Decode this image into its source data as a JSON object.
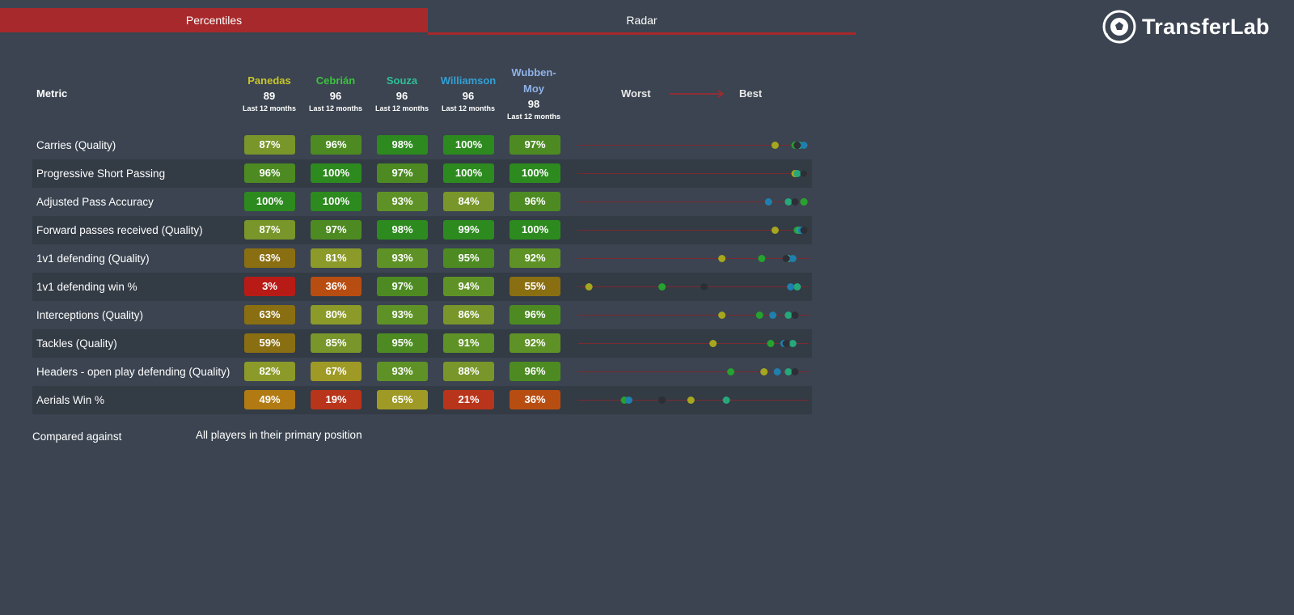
{
  "tabs": [
    {
      "label": "Percentiles",
      "active": true
    },
    {
      "label": "Radar",
      "active": false
    }
  ],
  "brand": {
    "name": "TransferLab"
  },
  "table": {
    "metric_header": "Metric",
    "scale": {
      "worst": "Worst",
      "best": "Best"
    },
    "players": [
      {
        "name": "Panedas",
        "score": "89",
        "period": "Last 12 months",
        "color": "#c7c62b"
      },
      {
        "name": "Cebrián",
        "score": "96",
        "period": "Last 12 months",
        "color": "#3ec33f"
      },
      {
        "name": "Souza",
        "score": "96",
        "period": "Last 12 months",
        "color": "#2fbf97"
      },
      {
        "name": "Williamson",
        "score": "96",
        "period": "Last 12 months",
        "color": "#33a0d6"
      },
      {
        "name": "Wubben-\nMoy",
        "score": "98",
        "period": "Last 12 months",
        "color": "#8fb2e8"
      }
    ],
    "dot_colors": [
      "#a6a71f",
      "#25a22f",
      "#26a87a",
      "#1f7fae",
      "#2c3036"
    ],
    "rows": [
      {
        "metric": "Carries (Quality)",
        "values": [
          87,
          96,
          98,
          100,
          97
        ],
        "labels": [
          "87%",
          "96%",
          "98%",
          "100%",
          "97%"
        ]
      },
      {
        "metric": "Progressive Short Passing",
        "values": [
          96,
          100,
          97,
          100,
          100
        ],
        "labels": [
          "96%",
          "100%",
          "97%",
          "100%",
          "100%"
        ]
      },
      {
        "metric": "Adjusted Pass Accuracy",
        "values": [
          100,
          100,
          93,
          84,
          96
        ],
        "labels": [
          "100%",
          "100%",
          "93%",
          "84%",
          "96%"
        ]
      },
      {
        "metric": "Forward passes received (Quality)",
        "values": [
          87,
          97,
          98,
          99,
          100
        ],
        "labels": [
          "87%",
          "97%",
          "98%",
          "99%",
          "100%"
        ]
      },
      {
        "metric": "1v1 defending (Quality)",
        "values": [
          63,
          81,
          93,
          95,
          92
        ],
        "labels": [
          "63%",
          "81%",
          "93%",
          "95%",
          "92%"
        ]
      },
      {
        "metric": "1v1 defending win %",
        "values": [
          3,
          36,
          97,
          94,
          55
        ],
        "labels": [
          "3%",
          "36%",
          "97%",
          "94%",
          "55%"
        ]
      },
      {
        "metric": "Interceptions (Quality)",
        "values": [
          63,
          80,
          93,
          86,
          96
        ],
        "labels": [
          "63%",
          "80%",
          "93%",
          "86%",
          "96%"
        ]
      },
      {
        "metric": "Tackles (Quality)",
        "values": [
          59,
          85,
          95,
          91,
          92
        ],
        "labels": [
          "59%",
          "85%",
          "95%",
          "91%",
          "92%"
        ]
      },
      {
        "metric": "Headers - open play defending (Quality)",
        "values": [
          82,
          67,
          93,
          88,
          96
        ],
        "labels": [
          "82%",
          "67%",
          "93%",
          "88%",
          "96%"
        ]
      },
      {
        "metric": "Aerials Win %",
        "values": [
          49,
          19,
          65,
          21,
          36
        ],
        "labels": [
          "49%",
          "19%",
          "65%",
          "21%",
          "36%"
        ]
      }
    ]
  },
  "footer": {
    "compared_label": "Compared against",
    "compared_value": "All players in their primary position"
  }
}
